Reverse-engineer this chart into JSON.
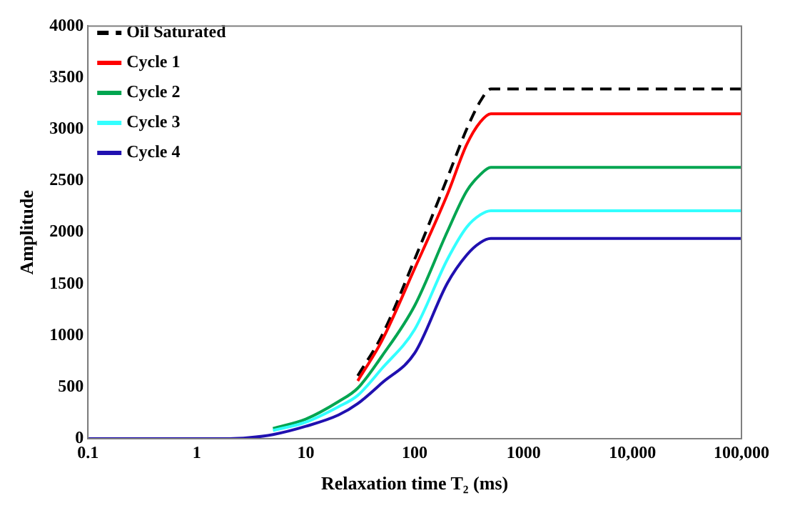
{
  "chart_data": {
    "type": "line",
    "xlabel": "Relaxation time T₂ (ms)",
    "ylabel": "Amplitude",
    "log": "x",
    "legend": "top left",
    "marker": "none",
    "xlim": [
      0.1,
      100000
    ],
    "xticks": [
      0.1,
      1,
      10,
      100,
      1000,
      {
        "value": 10000,
        "label": "10,000"
      },
      {
        "value": 100000,
        "label": "100,000"
      }
    ],
    "ylim": [
      0,
      4000
    ],
    "yticks": [
      0,
      500,
      1000,
      1500,
      2000,
      2500,
      3000,
      3500,
      4000
    ],
    "series": [
      {
        "name": "Oil Saturated",
        "color": "#000000",
        "line_style": "dashed",
        "x": [
          30,
          50,
          100,
          200,
          300,
          400,
          500,
          100000
        ],
        "values": [
          610,
          1000,
          1740,
          2530,
          3000,
          3270,
          3390,
          3390
        ]
      },
      {
        "name": "Cycle 1",
        "color": "#ff0000",
        "x": [
          30,
          50,
          100,
          200,
          300,
          400,
          500,
          100000
        ],
        "values": [
          560,
          950,
          1650,
          2370,
          2850,
          3070,
          3150,
          3150
        ]
      },
      {
        "name": "Cycle 2",
        "color": "#00a550",
        "x": [
          5,
          10,
          20,
          30,
          50,
          100,
          200,
          300,
          400,
          500,
          100000
        ],
        "values": [
          100,
          190,
          360,
          490,
          800,
          1290,
          2010,
          2400,
          2560,
          2630,
          2630
        ]
      },
      {
        "name": "Cycle 3",
        "color": "#33ffff",
        "x": [
          5,
          10,
          20,
          30,
          50,
          100,
          200,
          300,
          400,
          500,
          100000
        ],
        "values": [
          80,
          160,
          310,
          420,
          680,
          1060,
          1740,
          2050,
          2170,
          2210,
          2210
        ]
      },
      {
        "name": "Cycle 4",
        "color": "#2010b0",
        "x": [
          0.1,
          2,
          3,
          5,
          10,
          20,
          30,
          50,
          100,
          200,
          300,
          400,
          500,
          100000
        ],
        "values": [
          0,
          0,
          10,
          40,
          120,
          230,
          340,
          540,
          830,
          1510,
          1780,
          1900,
          1940,
          1940
        ]
      }
    ]
  }
}
